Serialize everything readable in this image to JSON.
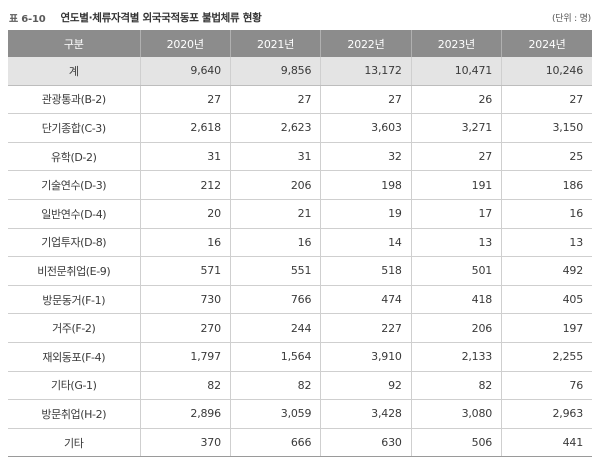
{
  "caption": {
    "table_number": "표 6-10",
    "title": "연도별·체류자격별 외국국적동포 불법체류 현황",
    "unit": "(단위 : 명)"
  },
  "table": {
    "headers": [
      "구분",
      "2020년",
      "2021년",
      "2022년",
      "2023년",
      "2024년"
    ],
    "rows": [
      [
        "계",
        "9,640",
        "9,856",
        "13,172",
        "10,471",
        "10,246"
      ],
      [
        "관광통과(B-2)",
        "27",
        "27",
        "27",
        "26",
        "27"
      ],
      [
        "단기종합(C-3)",
        "2,618",
        "2,623",
        "3,603",
        "3,271",
        "3,150"
      ],
      [
        "유학(D-2)",
        "31",
        "31",
        "32",
        "27",
        "25"
      ],
      [
        "기술연수(D-3)",
        "212",
        "206",
        "198",
        "191",
        "186"
      ],
      [
        "일반연수(D-4)",
        "20",
        "21",
        "19",
        "17",
        "16"
      ],
      [
        "기업투자(D-8)",
        "16",
        "16",
        "14",
        "13",
        "13"
      ],
      [
        "비전문취업(E-9)",
        "571",
        "551",
        "518",
        "501",
        "492"
      ],
      [
        "방문동거(F-1)",
        "730",
        "766",
        "474",
        "418",
        "405"
      ],
      [
        "거주(F-2)",
        "270",
        "244",
        "227",
        "206",
        "197"
      ],
      [
        "재외동포(F-4)",
        "1,797",
        "1,564",
        "3,910",
        "2,133",
        "2,255"
      ],
      [
        "기타(G-1)",
        "82",
        "82",
        "92",
        "82",
        "76"
      ],
      [
        "방문취업(H-2)",
        "2,896",
        "3,059",
        "3,428",
        "3,080",
        "2,963"
      ],
      [
        "기타",
        "370",
        "666",
        "630",
        "506",
        "441"
      ]
    ]
  }
}
